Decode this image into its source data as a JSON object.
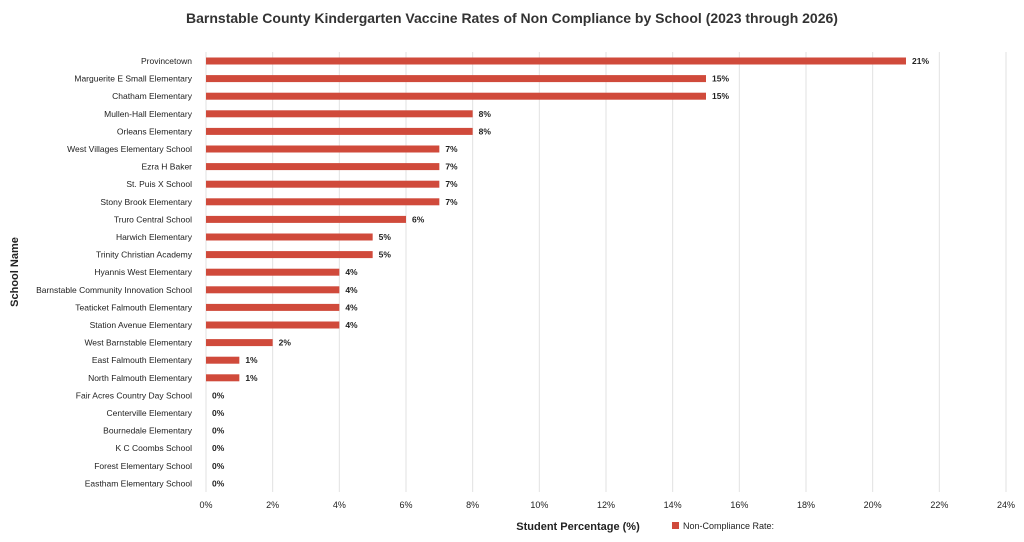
{
  "chart_data": {
    "type": "bar",
    "orientation": "horizontal",
    "title": "Barnstable County Kindergarten Vaccine Rates of Non Compliance by School (2023 through 2026)",
    "xlabel": "Student Percentage (%)",
    "ylabel": "School Name",
    "xlim": [
      0,
      24
    ],
    "x_ticks": [
      "0%",
      "2%",
      "4%",
      "6%",
      "8%",
      "10%",
      "12%",
      "14%",
      "16%",
      "18%",
      "20%",
      "22%",
      "24%"
    ],
    "grid": "vertical",
    "legend_position": "bottom",
    "bar_color": "#d04a3b",
    "series": [
      {
        "name": "Non-Compliance Rate:",
        "categories": [
          "Provincetown",
          "Marguerite E Small Elementary",
          "Chatham Elementary",
          "Mullen-Hall Elementary",
          "Orleans Elementary",
          "West Villages Elementary School",
          "Ezra H Baker",
          "St. Puis X School",
          "Stony Brook Elementary",
          "Truro Central School",
          "Harwich Elementary",
          "Trinity Christian Academy",
          "Hyannis West Elementary",
          "Barnstable Community Innovation School",
          "Teaticket Falmouth Elementary",
          "Station Avenue Elementary",
          "West Barnstable Elementary",
          "East Falmouth Elementary",
          "North Falmouth Elementary",
          "Fair Acres Country Day School",
          "Centerville Elementary",
          "Bournedale Elementary",
          "K C Coombs School",
          "Forest Elementary School",
          "Eastham Elementary School"
        ],
        "values": [
          21,
          15,
          15,
          8,
          8,
          7,
          7,
          7,
          7,
          6,
          5,
          5,
          4,
          4,
          4,
          4,
          2,
          1,
          1,
          0,
          0,
          0,
          0,
          0,
          0
        ],
        "labels": [
          "21%",
          "15%",
          "15%",
          "8%",
          "8%",
          "7%",
          "7%",
          "7%",
          "7%",
          "6%",
          "5%",
          "5%",
          "4%",
          "4%",
          "4%",
          "4%",
          "2%",
          "1%",
          "1%",
          "0%",
          "0%",
          "0%",
          "0%",
          "0%",
          "0%"
        ]
      }
    ]
  }
}
